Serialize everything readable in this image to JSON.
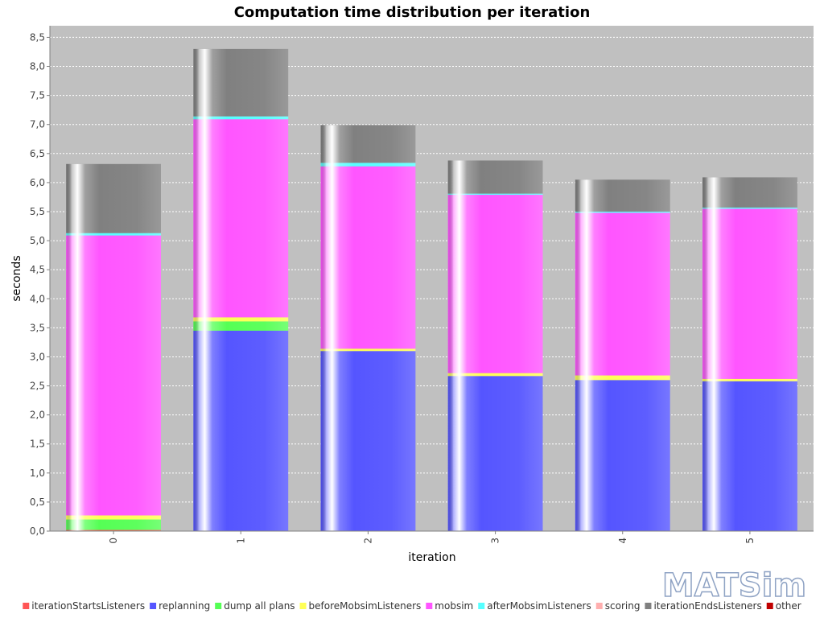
{
  "chart_data": {
    "type": "bar",
    "stacked": true,
    "title": "Computation time distribution per iteration",
    "xlabel": "iteration",
    "ylabel": "seconds",
    "ylim": [
      0,
      8.7
    ],
    "yticks": [
      "0,0",
      "0,5",
      "1,0",
      "1,5",
      "2,0",
      "2,5",
      "3,0",
      "3,5",
      "4,0",
      "4,5",
      "5,0",
      "5,5",
      "6,0",
      "6,5",
      "7,0",
      "7,5",
      "8,0",
      "8,5"
    ],
    "grid": true,
    "legend_position": "bottom",
    "categories": [
      "0",
      "1",
      "2",
      "3",
      "4",
      "5"
    ],
    "series": [
      {
        "name": "iterationStartsListeners",
        "color": "#ff5555",
        "values": [
          0.02,
          0.0,
          0.0,
          0.0,
          0.0,
          0.0
        ]
      },
      {
        "name": "replanning",
        "color": "#5555ff",
        "values": [
          0.0,
          3.45,
          3.1,
          2.67,
          2.6,
          2.58
        ]
      },
      {
        "name": "dump all plans",
        "color": "#55ff55",
        "values": [
          0.18,
          0.16,
          0.0,
          0.0,
          0.0,
          0.0
        ]
      },
      {
        "name": "beforeMobsimListeners",
        "color": "#ffff55",
        "values": [
          0.07,
          0.07,
          0.04,
          0.05,
          0.08,
          0.04
        ]
      },
      {
        "name": "mobsim",
        "color": "#ff55ff",
        "values": [
          4.82,
          3.41,
          3.14,
          3.07,
          2.8,
          2.93
        ]
      },
      {
        "name": "afterMobsimListeners",
        "color": "#55ffff",
        "values": [
          0.04,
          0.05,
          0.06,
          0.02,
          0.02,
          0.02
        ]
      },
      {
        "name": "scoring",
        "color": "#ffafaf",
        "values": [
          0.0,
          0.0,
          0.0,
          0.0,
          0.0,
          0.0
        ]
      },
      {
        "name": "iterationEndsListeners",
        "color": "#808080",
        "values": [
          1.19,
          1.16,
          0.65,
          0.57,
          0.55,
          0.52
        ]
      },
      {
        "name": "other",
        "color": "#c00000",
        "values": [
          0.0,
          0.0,
          0.0,
          0.0,
          0.0,
          0.0
        ]
      }
    ]
  },
  "logo": {
    "text": "MATSim"
  }
}
